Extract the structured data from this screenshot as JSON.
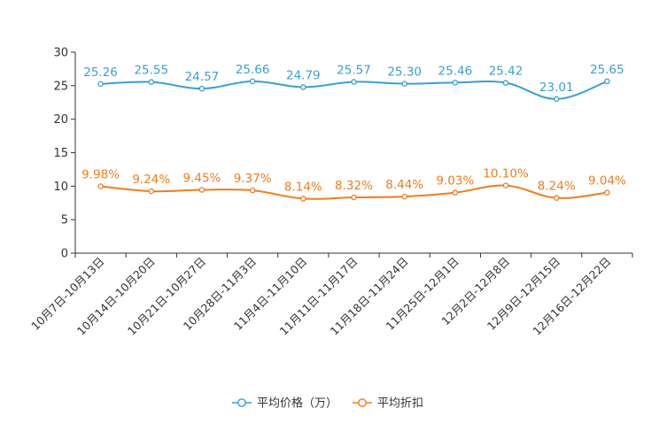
{
  "chart_data": {
    "type": "line",
    "categories": [
      "10月7日-10月13日",
      "10月14日-10月20日",
      "10月21日-10月27日",
      "10月28日-11月3日",
      "11月4日-11月10日",
      "11月11日-11月17日",
      "11月18日-11月24日",
      "11月25日-12月1日",
      "12月2日-12月8日",
      "12月9日-12月15日",
      "12月16日-12月22日"
    ],
    "ylim": [
      0,
      30
    ],
    "yticks": [
      0,
      5,
      10,
      15,
      20,
      25,
      30
    ],
    "series": [
      {
        "name": "平均价格（万）",
        "color": "#3b9fd1",
        "values": [
          25.26,
          25.55,
          24.57,
          25.66,
          24.79,
          25.57,
          25.3,
          25.46,
          25.42,
          23.01,
          25.65
        ],
        "labels": [
          "25.26",
          "25.55",
          "24.57",
          "25.66",
          "24.79",
          "25.57",
          "25.30",
          "25.46",
          "25.42",
          "23.01",
          "25.65"
        ]
      },
      {
        "name": "平均折扣",
        "color": "#f07d1c",
        "values": [
          9.98,
          9.24,
          9.45,
          9.37,
          8.14,
          8.32,
          8.44,
          9.03,
          10.1,
          8.24,
          9.04
        ],
        "labels": [
          "9.98%",
          "9.24%",
          "9.45%",
          "9.37%",
          "8.14%",
          "8.32%",
          "8.44%",
          "9.03%",
          "10.10%",
          "8.24%",
          "9.04%"
        ]
      }
    ],
    "legend_position": "bottom-center",
    "grid": false
  }
}
